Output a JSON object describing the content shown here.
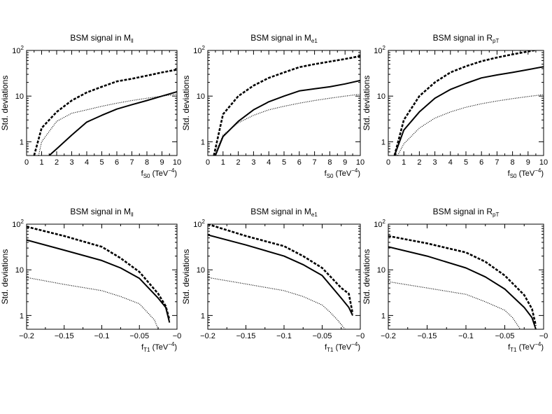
{
  "chart_data": [
    {
      "type": "line",
      "title": {
        "main": "BSM signal in M",
        "sub": "ll"
      },
      "xlabel": {
        "main": "f",
        "sub": "S0",
        "post": " (TeV",
        "sup": "−4",
        "close": ")"
      },
      "ylabel": "Std. deviations",
      "xlim": [
        0,
        10
      ],
      "ylim": [
        0.5,
        100
      ],
      "yscale": "log",
      "xticks": [
        "0",
        "1",
        "2",
        "3",
        "4",
        "5",
        "6",
        "7",
        "8",
        "9",
        "10"
      ],
      "yticks": [
        {
          "value": 1,
          "label": "1"
        },
        {
          "value": 10,
          "label": "10"
        },
        {
          "value": 100,
          "label": "10",
          "sup": "2"
        }
      ],
      "series": [
        {
          "style": "dashed",
          "x": [
            0.5,
            1,
            2,
            3,
            4,
            5,
            6,
            7,
            8,
            9,
            10
          ],
          "y": [
            0.5,
            2,
            4.5,
            8,
            12,
            16,
            21,
            24,
            28,
            33,
            38
          ]
        },
        {
          "style": "solid",
          "x": [
            1.5,
            2,
            3,
            4,
            5,
            6,
            7,
            8,
            9,
            10
          ],
          "y": [
            0.5,
            0.7,
            1.4,
            2.7,
            3.8,
            5.2,
            6.5,
            8,
            10,
            12.5
          ]
        },
        {
          "style": "dotted",
          "x": [
            0.8,
            1,
            2,
            3,
            4,
            5,
            6,
            7,
            8,
            9,
            10
          ],
          "y": [
            0.5,
            1,
            2.8,
            4.2,
            5,
            6,
            7,
            8,
            9,
            10,
            11
          ]
        }
      ]
    },
    {
      "type": "line",
      "title": {
        "main": "BSM signal in M",
        "sub": "e1"
      },
      "xlabel": {
        "main": "f",
        "sub": "S0",
        "post": " (TeV",
        "sup": "−4",
        "close": ")"
      },
      "ylabel": "Std. deviations",
      "xlim": [
        0,
        10
      ],
      "ylim": [
        0.5,
        100
      ],
      "yscale": "log",
      "xticks": [
        "0",
        "1",
        "2",
        "3",
        "4",
        "5",
        "6",
        "7",
        "8",
        "9",
        "10"
      ],
      "yticks": [
        {
          "value": 1,
          "label": "1"
        },
        {
          "value": 10,
          "label": "10"
        },
        {
          "value": 100,
          "label": "10",
          "sup": "2"
        }
      ],
      "series": [
        {
          "style": "dashed",
          "x": [
            0.4,
            1,
            2,
            3,
            4,
            5,
            6,
            7,
            8,
            9,
            10
          ],
          "y": [
            0.5,
            4,
            10,
            17,
            25,
            33,
            43,
            50,
            57,
            65,
            75
          ]
        },
        {
          "style": "solid",
          "x": [
            0.5,
            1,
            2,
            3,
            4,
            5,
            6,
            7,
            8,
            9,
            10
          ],
          "y": [
            0.5,
            1.3,
            2.8,
            5,
            7.5,
            10,
            13,
            14.5,
            16,
            18.5,
            22
          ]
        },
        {
          "style": "dotted",
          "x": [
            0.4,
            1,
            2,
            3,
            4,
            5,
            6,
            7,
            8,
            9,
            10
          ],
          "y": [
            0.5,
            1.4,
            2.6,
            3.8,
            5,
            6,
            7,
            8,
            9,
            10,
            11
          ]
        }
      ]
    },
    {
      "type": "line",
      "title": {
        "main": "BSM signal in R",
        "sub": "pT"
      },
      "xlabel": {
        "main": "f",
        "sub": "S0",
        "post": " (TeV",
        "sup": "−4",
        "close": ")"
      },
      "ylabel": "Std. deviations",
      "xlim": [
        0,
        10
      ],
      "ylim": [
        0.5,
        100
      ],
      "yscale": "log",
      "xticks": [
        "0",
        "1",
        "2",
        "3",
        "4",
        "5",
        "6",
        "7",
        "8",
        "9",
        "10"
      ],
      "yticks": [
        {
          "value": 1,
          "label": "1"
        },
        {
          "value": 10,
          "label": "10"
        },
        {
          "value": 100,
          "label": "10",
          "sup": "2"
        }
      ],
      "series": [
        {
          "style": "dashed",
          "x": [
            0.4,
            1,
            2,
            3,
            4,
            5,
            6,
            7,
            8,
            9,
            10
          ],
          "y": [
            0.5,
            3,
            10,
            20,
            33,
            45,
            58,
            70,
            82,
            95,
            110
          ]
        },
        {
          "style": "solid",
          "x": [
            0.4,
            1,
            2,
            3,
            4,
            5,
            6,
            7,
            8,
            9,
            10
          ],
          "y": [
            0.5,
            1.8,
            4.5,
            9,
            14,
            19,
            25,
            29,
            33,
            38,
            44
          ]
        },
        {
          "style": "dotted",
          "x": [
            0.6,
            1,
            2,
            3,
            4,
            5,
            6,
            7,
            8,
            9,
            10
          ],
          "y": [
            0.5,
            0.9,
            2,
            3.3,
            4.5,
            5.7,
            6.8,
            7.8,
            8.8,
            9.8,
            10.8
          ]
        }
      ]
    },
    {
      "type": "line",
      "title": {
        "main": "BSM signal in M",
        "sub": "ll"
      },
      "xlabel": {
        "main": "f",
        "sub": "T1",
        "post": " (TeV",
        "sup": "−4",
        "close": ")"
      },
      "ylabel": "Std. deviations",
      "xlim": [
        -0.2,
        0
      ],
      "ylim": [
        0.5,
        100
      ],
      "yscale": "log",
      "xticks": [
        "−0.2",
        "−0.15",
        "−0.1",
        "−0.05",
        "−0"
      ],
      "yticks": [
        {
          "value": 1,
          "label": "1"
        },
        {
          "value": 10,
          "label": "10"
        },
        {
          "value": 100,
          "label": "10",
          "sup": "2"
        }
      ],
      "series": [
        {
          "style": "dashed",
          "x": [
            -0.2,
            -0.15,
            -0.1,
            -0.075,
            -0.05,
            -0.025,
            -0.015,
            -0.01
          ],
          "y": [
            88,
            55,
            32,
            18,
            9,
            3,
            1.6,
            0.8
          ]
        },
        {
          "style": "solid",
          "x": [
            -0.2,
            -0.15,
            -0.1,
            -0.075,
            -0.05,
            -0.025,
            -0.015,
            -0.01
          ],
          "y": [
            45,
            27,
            16,
            11,
            6.5,
            2.4,
            1.5,
            0.7
          ]
        },
        {
          "style": "dotted",
          "x": [
            -0.2,
            -0.15,
            -0.1,
            -0.075,
            -0.05,
            -0.04,
            -0.03,
            -0.025
          ],
          "y": [
            6.8,
            4.8,
            3.5,
            2.6,
            1.8,
            1.2,
            0.8,
            0.5
          ]
        }
      ]
    },
    {
      "type": "line",
      "title": {
        "main": "BSM signal in M",
        "sub": "e1"
      },
      "xlabel": {
        "main": "f",
        "sub": "T1",
        "post": " (TeV",
        "sup": "−4",
        "close": ")"
      },
      "ylabel": "Std. deviations",
      "xlim": [
        -0.2,
        0
      ],
      "ylim": [
        0.5,
        100
      ],
      "yscale": "log",
      "xticks": [
        "−0.2",
        "−0.15",
        "−0.1",
        "−0.05",
        "−0"
      ],
      "yticks": [
        {
          "value": 1,
          "label": "1"
        },
        {
          "value": 10,
          "label": "10"
        },
        {
          "value": 100,
          "label": "10",
          "sup": "2"
        }
      ],
      "series": [
        {
          "style": "dashed",
          "x": [
            -0.2,
            -0.15,
            -0.1,
            -0.075,
            -0.05,
            -0.025,
            -0.015,
            -0.01
          ],
          "y": [
            100,
            55,
            33,
            20,
            11,
            4,
            3,
            1.1
          ]
        },
        {
          "style": "solid",
          "x": [
            -0.2,
            -0.15,
            -0.1,
            -0.075,
            -0.05,
            -0.025,
            -0.015,
            -0.01
          ],
          "y": [
            58,
            35,
            20,
            13,
            7.5,
            2.4,
            1.5,
            1
          ]
        },
        {
          "style": "dotted",
          "x": [
            -0.2,
            -0.15,
            -0.1,
            -0.075,
            -0.05,
            -0.04,
            -0.03,
            -0.02
          ],
          "y": [
            6.8,
            4.9,
            3.5,
            2.6,
            1.7,
            1.2,
            0.8,
            0.5
          ]
        }
      ]
    },
    {
      "type": "line",
      "title": {
        "main": "BSM signal in R",
        "sub": "pT"
      },
      "xlabel": {
        "main": "f",
        "sub": "T1",
        "post": " (TeV",
        "sup": "−4",
        "close": ")"
      },
      "ylabel": "Std. deviations",
      "xlim": [
        -0.2,
        0
      ],
      "ylim": [
        0.5,
        100
      ],
      "yscale": "log",
      "xticks": [
        "−0.2",
        "−0.15",
        "−0.1",
        "−0.05",
        "−0"
      ],
      "yticks": [
        {
          "value": 1,
          "label": "1"
        },
        {
          "value": 10,
          "label": "10"
        },
        {
          "value": 100,
          "label": "10",
          "sup": "2"
        }
      ],
      "series": [
        {
          "style": "dashed",
          "x": [
            -0.2,
            -0.15,
            -0.1,
            -0.075,
            -0.05,
            -0.025,
            -0.015,
            -0.01
          ],
          "y": [
            55,
            38,
            24,
            15,
            7.5,
            2.8,
            1.4,
            0.6
          ]
        },
        {
          "style": "solid",
          "x": [
            -0.2,
            -0.15,
            -0.1,
            -0.075,
            -0.05,
            -0.025,
            -0.015,
            -0.01
          ],
          "y": [
            32,
            20,
            11,
            7,
            3.8,
            1.5,
            0.9,
            0.5
          ]
        },
        {
          "style": "dotted",
          "x": [
            -0.2,
            -0.15,
            -0.1,
            -0.075,
            -0.05,
            -0.04,
            -0.03
          ],
          "y": [
            5.5,
            4,
            2.9,
            2,
            1.3,
            0.9,
            0.5
          ]
        }
      ]
    }
  ]
}
